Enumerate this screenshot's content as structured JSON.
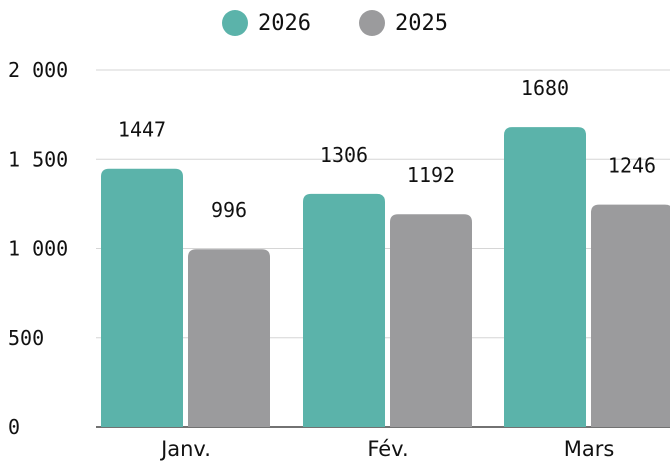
{
  "chart_data": {
    "type": "bar",
    "categories": [
      "Janv.",
      "Fév.",
      "Mars"
    ],
    "series": [
      {
        "name": "2026",
        "values": [
          1447,
          1306,
          1680
        ],
        "color": "#5bb3aa"
      },
      {
        "name": "2025",
        "values": [
          996,
          1192,
          1246
        ],
        "color": "#9b9b9d"
      }
    ],
    "ylim": [
      0,
      2000
    ],
    "yticks": [
      {
        "value": 0,
        "label": "0"
      },
      {
        "value": 500,
        "label": "500"
      },
      {
        "value": 1000,
        "label": "1 000"
      },
      {
        "value": 1500,
        "label": "1 500"
      },
      {
        "value": 2000,
        "label": "2 000"
      }
    ],
    "grid": true,
    "legend_position": "top-center",
    "title": "",
    "xlabel": "",
    "ylabel": ""
  }
}
